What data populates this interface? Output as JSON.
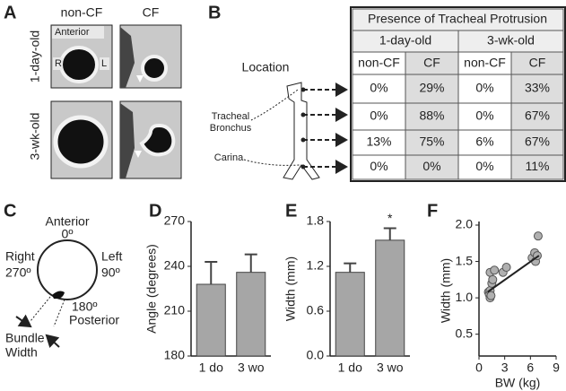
{
  "panel_labels": [
    "A",
    "B",
    "C",
    "D",
    "E",
    "F"
  ],
  "panel_a": {
    "columns": [
      "non-CF",
      "CF"
    ],
    "rows": [
      "1-day-old",
      "3-wk-old"
    ],
    "anterior": "Anterior",
    "right": "R",
    "left": "L"
  },
  "panel_b": {
    "location": "Location",
    "tracheal_bronchus": [
      "Tracheal",
      "Bronchus"
    ],
    "carina": "Carina",
    "table": {
      "title": "Presence of Tracheal Protrusion",
      "groups": [
        "1-day-old",
        "3-wk-old"
      ],
      "subheaders": [
        "non-CF",
        "CF",
        "non-CF",
        "CF"
      ],
      "rows": [
        [
          "0%",
          "29%",
          "0%",
          "33%"
        ],
        [
          "0%",
          "88%",
          "0%",
          "67%"
        ],
        [
          "13%",
          "75%",
          "6%",
          "67%"
        ],
        [
          "0%",
          "0%",
          "0%",
          "11%"
        ]
      ]
    }
  },
  "panel_c": {
    "anterior": "Anterior",
    "zero": "0º",
    "right": "Right",
    "deg270": "270º",
    "left": "Left",
    "deg90": "90º",
    "deg180": "180º",
    "posterior": "Posterior",
    "bundle_width": [
      "Bundle",
      "Width"
    ]
  },
  "chart_data": [
    {
      "type": "bar",
      "ylabel": "Angle (degrees)",
      "categories": [
        "1 do",
        "3 wo"
      ],
      "values": [
        228,
        236
      ],
      "errors": [
        15,
        12
      ],
      "color": "#a6a6a6",
      "ylim": [
        180,
        270
      ],
      "yticks": [
        180,
        210,
        240,
        270
      ]
    },
    {
      "type": "bar",
      "ylabel": "Width (mm)",
      "categories": [
        "1 do",
        "3 wo"
      ],
      "values": [
        1.12,
        1.55
      ],
      "errors": [
        0.12,
        0.16
      ],
      "color": "#a6a6a6",
      "annotation": "*",
      "ylim": [
        0,
        1.8
      ],
      "yticks": [
        {
          "value": 0,
          "label": "0.0"
        },
        0.6,
        1.2,
        1.8
      ]
    },
    {
      "type": "scatter",
      "xlabel": "BW (kg)",
      "ylabel": "Width (mm)",
      "color": "#b0b0b0",
      "x": [
        1.1,
        1.2,
        1.3,
        1.3,
        1.4,
        1.5,
        1.3,
        1.6,
        1.8,
        2.8,
        3.2,
        6.2,
        6.5,
        6.6,
        6.8,
        6.9
      ],
      "y": [
        1.08,
        1.05,
        1.0,
        1.1,
        1.03,
        1.2,
        1.35,
        1.25,
        1.38,
        1.35,
        1.42,
        1.55,
        1.62,
        1.5,
        1.58,
        1.85
      ],
      "fit": {
        "x": [
          1.0,
          7.0
        ],
        "y": [
          1.08,
          1.58
        ]
      },
      "xlim": [
        0,
        9
      ],
      "xticks": [
        0,
        3,
        6,
        9
      ],
      "ylim": [
        0.2,
        2.0
      ],
      "yticks": [
        0.5,
        {
          "value": 1.0,
          "label": "1.0"
        },
        1.5,
        {
          "value": 2.0,
          "label": "2.0"
        }
      ]
    }
  ]
}
